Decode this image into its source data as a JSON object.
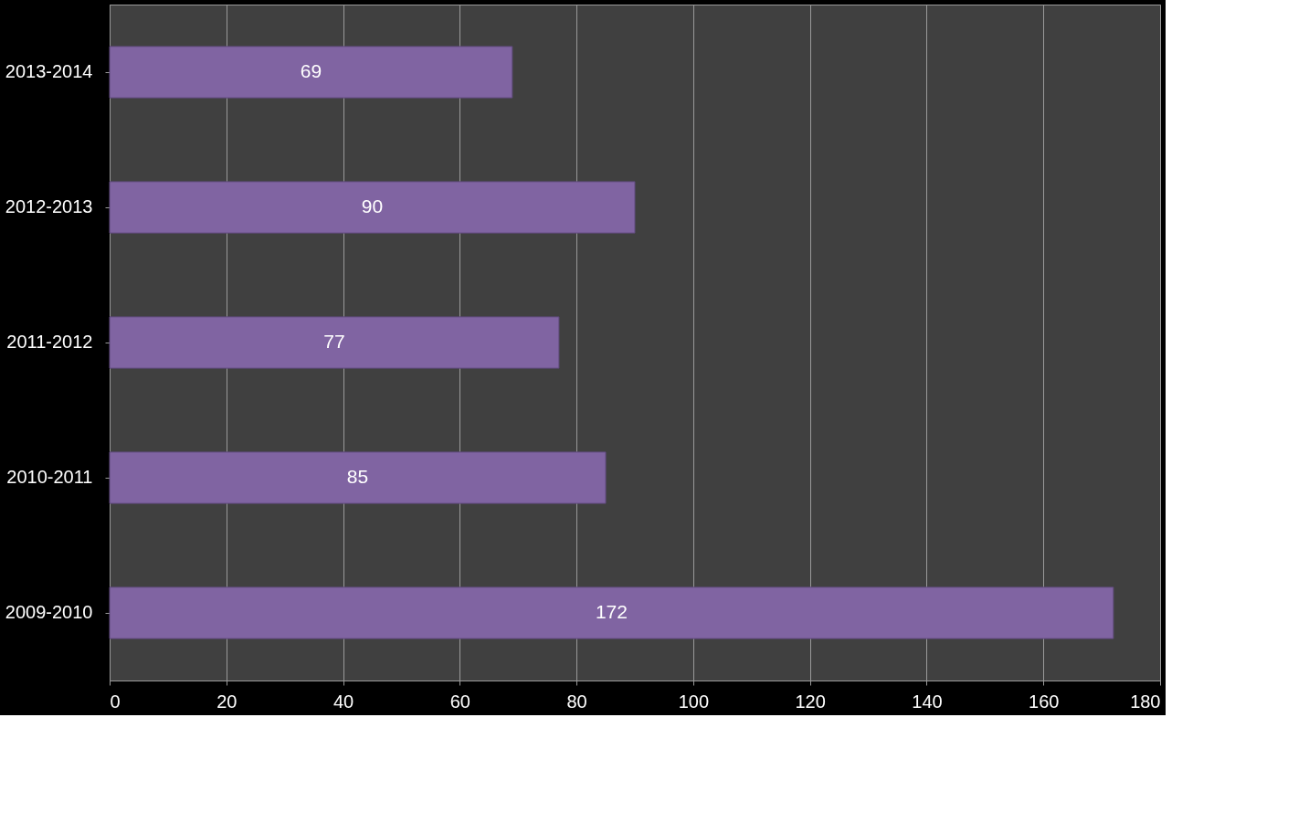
{
  "chart_data": {
    "type": "bar",
    "orientation": "horizontal",
    "categories": [
      "2013-2014",
      "2012-2013",
      "2011-2012",
      "2010-2011",
      "2009-2010"
    ],
    "values": [
      69,
      90,
      77,
      85,
      172
    ],
    "color": "#8064a2",
    "xlim": [
      0,
      180
    ],
    "xticks": [
      0,
      20,
      40,
      60,
      80,
      100,
      120,
      140,
      160,
      180
    ],
    "grid": "x",
    "data_labels": true
  }
}
